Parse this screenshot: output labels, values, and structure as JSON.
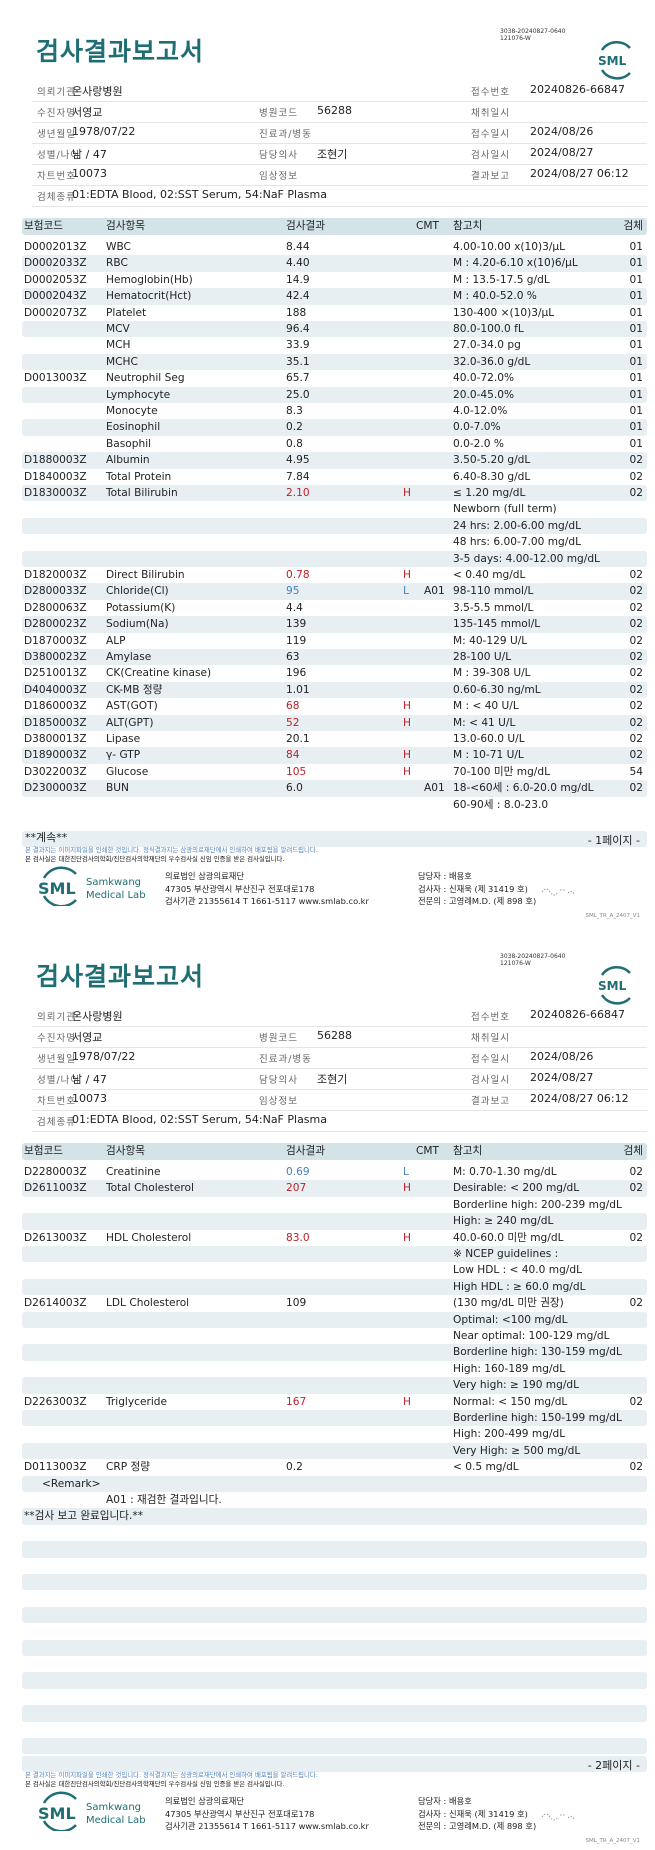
{
  "document": {
    "title": "검사결과보고서",
    "doc_id_line1": "3038-20240827-0640",
    "doc_id_line2": "121076-W",
    "brand_color": "#1e6e74",
    "high_color": "#c0202a",
    "low_color": "#4a7fc0"
  },
  "header": {
    "institution_label": "의뢰기관",
    "institution": "온사랑병원",
    "receipt_no_label": "접수번호",
    "receipt_no": "20240826-66847",
    "patient_label": "수진자명",
    "patient": "서영교",
    "hospital_code_label": "병원코드",
    "hospital_code": "56288",
    "collected_label": "채취일시",
    "collected": "",
    "dob_label": "생년월일",
    "dob": "1978/07/22",
    "dept_label": "진료과/병동",
    "dept": "",
    "received_label": "접수일시",
    "received": "2024/08/26",
    "sex_age_label": "성별/나이",
    "sex_age": "남 / 47",
    "doctor_label": "담당의사",
    "doctor": "조현기",
    "tested_label": "검사일시",
    "tested": "2024/08/27",
    "chart_label": "차트번호",
    "chart": "10073",
    "clinical_label": "임상정보",
    "clinical": "",
    "reported_label": "결과보고",
    "reported": "2024/08/27 06:12",
    "specimen_label": "검체종류",
    "specimen": "01:EDTA Blood, 02:SST Serum, 54:NaF Plasma"
  },
  "table_header": {
    "code": "보험코드",
    "item": "검사항목",
    "result": "검사결과",
    "cmt": "CMT",
    "ref": "참고치",
    "spec": "검체"
  },
  "pages": [
    {
      "rows": [
        {
          "code": "D0002013Z",
          "item": "WBC",
          "result": "8.44",
          "flag": "",
          "cmt": "",
          "ref": "4.00-10.00 x(10)3/μL",
          "spec": "01"
        },
        {
          "code": "D0002033Z",
          "item": "RBC",
          "result": "4.40",
          "flag": "",
          "cmt": "",
          "ref": "M : 4.20-6.10 x(10)6/μL",
          "spec": "01"
        },
        {
          "code": "D0002053Z",
          "item": "Hemoglobin(Hb)",
          "result": "14.9",
          "flag": "",
          "cmt": "",
          "ref": "M : 13.5-17.5 g/dL",
          "spec": "01"
        },
        {
          "code": "D0002043Z",
          "item": "Hematocrit(Hct)",
          "result": "42.4",
          "flag": "",
          "cmt": "",
          "ref": "M : 40.0-52.0 %",
          "spec": "01"
        },
        {
          "code": "D0002073Z",
          "item": "Platelet",
          "result": "188",
          "flag": "",
          "cmt": "",
          "ref": "130-400 ×(10)3/μL",
          "spec": "01"
        },
        {
          "code": "",
          "item": "MCV",
          "result": "96.4",
          "flag": "",
          "cmt": "",
          "ref": "80.0-100.0 fL",
          "spec": "01"
        },
        {
          "code": "",
          "item": "MCH",
          "result": "33.9",
          "flag": "",
          "cmt": "",
          "ref": "27.0-34.0 pg",
          "spec": "01"
        },
        {
          "code": "",
          "item": "MCHC",
          "result": "35.1",
          "flag": "",
          "cmt": "",
          "ref": "32.0-36.0 g/dL",
          "spec": "01"
        },
        {
          "code": "D0013003Z",
          "item": "Neutrophil Seg",
          "result": "65.7",
          "flag": "",
          "cmt": "",
          "ref": "40.0-72.0%",
          "spec": "01"
        },
        {
          "code": "",
          "item": "Lymphocyte",
          "result": "25.0",
          "flag": "",
          "cmt": "",
          "ref": "20.0-45.0%",
          "spec": "01"
        },
        {
          "code": "",
          "item": "Monocyte",
          "result": "8.3",
          "flag": "",
          "cmt": "",
          "ref": "4.0-12.0%",
          "spec": "01"
        },
        {
          "code": "",
          "item": "Eosinophil",
          "result": "0.2",
          "flag": "",
          "cmt": "",
          "ref": "0.0-7.0%",
          "spec": "01"
        },
        {
          "code": "",
          "item": "Basophil",
          "result": "0.8",
          "flag": "",
          "cmt": "",
          "ref": "0.0-2.0 %",
          "spec": "01"
        },
        {
          "code": "D1880003Z",
          "item": "Albumin",
          "result": "4.95",
          "flag": "",
          "cmt": "",
          "ref": "3.50-5.20 g/dL",
          "spec": "02"
        },
        {
          "code": "D1840003Z",
          "item": "Total Protein",
          "result": "7.84",
          "flag": "",
          "cmt": "",
          "ref": "6.40-8.30 g/dL",
          "spec": "02"
        },
        {
          "code": "D1830003Z",
          "item": "Total Bilirubin",
          "result": "2.10",
          "flag": "H",
          "cmt": "",
          "ref": "≤ 1.20 mg/dL",
          "spec": "02"
        },
        {
          "code": "",
          "item": "",
          "result": "",
          "flag": "",
          "cmt": "",
          "ref": "Newborn (full term)",
          "spec": ""
        },
        {
          "code": "",
          "item": "",
          "result": "",
          "flag": "",
          "cmt": "",
          "ref": "24 hrs: 2.00-6.00 mg/dL",
          "spec": ""
        },
        {
          "code": "",
          "item": "",
          "result": "",
          "flag": "",
          "cmt": "",
          "ref": "48 hrs: 6.00-7.00 mg/dL",
          "spec": ""
        },
        {
          "code": "",
          "item": "",
          "result": "",
          "flag": "",
          "cmt": "",
          "ref": "3-5 days: 4.00-12.00 mg/dL",
          "spec": ""
        },
        {
          "code": "D1820003Z",
          "item": "Direct Bilirubin",
          "result": "0.78",
          "flag": "H",
          "cmt": "",
          "ref": "< 0.40 mg/dL",
          "spec": "02"
        },
        {
          "code": "D2800033Z",
          "item": "Chloride(Cl)",
          "result": "95",
          "flag": "L",
          "cmt": "A01",
          "ref": "98-110 mmol/L",
          "spec": "02"
        },
        {
          "code": "D2800063Z",
          "item": "Potassium(K)",
          "result": "4.4",
          "flag": "",
          "cmt": "",
          "ref": "3.5-5.5 mmol/L",
          "spec": "02"
        },
        {
          "code": "D2800023Z",
          "item": "Sodium(Na)",
          "result": "139",
          "flag": "",
          "cmt": "",
          "ref": "135-145 mmol/L",
          "spec": "02"
        },
        {
          "code": "D1870003Z",
          "item": "ALP",
          "result": "119",
          "flag": "",
          "cmt": "",
          "ref": "M: 40-129 U/L",
          "spec": "02"
        },
        {
          "code": "D3800023Z",
          "item": "Amylase",
          "result": "63",
          "flag": "",
          "cmt": "",
          "ref": "28-100 U/L",
          "spec": "02"
        },
        {
          "code": "D2510013Z",
          "item": "CK(Creatine kinase)",
          "result": "196",
          "flag": "",
          "cmt": "",
          "ref": "M : 39-308 U/L",
          "spec": "02"
        },
        {
          "code": "D4040003Z",
          "item": "CK-MB 정량",
          "result": "1.01",
          "flag": "",
          "cmt": "",
          "ref": "0.60-6.30 ng/mL",
          "spec": "02"
        },
        {
          "code": "D1860003Z",
          "item": "AST(GOT)",
          "result": "68",
          "flag": "H",
          "cmt": "",
          "ref": "M : < 40 U/L",
          "spec": "02"
        },
        {
          "code": "D1850003Z",
          "item": "ALT(GPT)",
          "result": "52",
          "flag": "H",
          "cmt": "",
          "ref": "M: < 41 U/L",
          "spec": "02"
        },
        {
          "code": "D3800013Z",
          "item": "Lipase",
          "result": "20.1",
          "flag": "",
          "cmt": "",
          "ref": "13.0-60.0 U/L",
          "spec": "02"
        },
        {
          "code": "D1890003Z",
          "item": "γ- GTP",
          "result": "84",
          "flag": "H",
          "cmt": "",
          "ref": "M : 10-71 U/L",
          "spec": "02"
        },
        {
          "code": "D3022003Z",
          "item": "Glucose",
          "result": "105",
          "flag": "H",
          "cmt": "",
          "ref": "70-100 미만 mg/dL",
          "spec": "54"
        },
        {
          "code": "D2300003Z",
          "item": "BUN",
          "result": "6.0",
          "flag": "",
          "cmt": "A01",
          "ref": "18-<60세 : 6.0-20.0 mg/dL",
          "spec": "02"
        },
        {
          "code": "",
          "item": "",
          "result": "",
          "flag": "",
          "cmt": "",
          "ref": "60-90세 : 8.0-23.0",
          "spec": ""
        }
      ],
      "continued": "**계속**",
      "page_label": "- 1페이지 -"
    },
    {
      "rows": [
        {
          "code": "D2280003Z",
          "item": "Creatinine",
          "result": "0.69",
          "flag": "L",
          "cmt": "",
          "ref": "M: 0.70-1.30 mg/dL",
          "spec": "02"
        },
        {
          "code": "D2611003Z",
          "item": "Total Cholesterol",
          "result": "207",
          "flag": "H",
          "cmt": "",
          "ref": "Desirable: < 200 mg/dL",
          "spec": "02"
        },
        {
          "code": "",
          "item": "",
          "result": "",
          "flag": "",
          "cmt": "",
          "ref": "Borderline high: 200-239 mg/dL",
          "spec": ""
        },
        {
          "code": "",
          "item": "",
          "result": "",
          "flag": "",
          "cmt": "",
          "ref": "High: ≥ 240 mg/dL",
          "spec": ""
        },
        {
          "code": "D2613003Z",
          "item": "HDL Cholesterol",
          "result": "83.0",
          "flag": "H",
          "cmt": "",
          "ref": "40.0-60.0 미만 mg/dL",
          "spec": "02"
        },
        {
          "code": "",
          "item": "",
          "result": "",
          "flag": "",
          "cmt": "",
          "ref": "※ NCEP guidelines :",
          "spec": ""
        },
        {
          "code": "",
          "item": "",
          "result": "",
          "flag": "",
          "cmt": "",
          "ref": "Low HDL : < 40.0 mg/dL",
          "spec": ""
        },
        {
          "code": "",
          "item": "",
          "result": "",
          "flag": "",
          "cmt": "",
          "ref": "High HDL : ≥ 60.0 mg/dL",
          "spec": ""
        },
        {
          "code": "D2614003Z",
          "item": "LDL Cholesterol",
          "result": "109",
          "flag": "",
          "cmt": "",
          "ref": "(130 mg/dL 미만 권장)",
          "spec": "02"
        },
        {
          "code": "",
          "item": "",
          "result": "",
          "flag": "",
          "cmt": "",
          "ref": "Optimal: <100 mg/dL",
          "spec": ""
        },
        {
          "code": "",
          "item": "",
          "result": "",
          "flag": "",
          "cmt": "",
          "ref": "Near optimal: 100-129 mg/dL",
          "spec": ""
        },
        {
          "code": "",
          "item": "",
          "result": "",
          "flag": "",
          "cmt": "",
          "ref": "Borderline high: 130-159 mg/dL",
          "spec": ""
        },
        {
          "code": "",
          "item": "",
          "result": "",
          "flag": "",
          "cmt": "",
          "ref": "High: 160-189 mg/dL",
          "spec": ""
        },
        {
          "code": "",
          "item": "",
          "result": "",
          "flag": "",
          "cmt": "",
          "ref": "Very high: ≥ 190 mg/dL",
          "spec": ""
        },
        {
          "code": "D2263003Z",
          "item": "Triglyceride",
          "result": "167",
          "flag": "H",
          "cmt": "",
          "ref": "Normal: < 150 mg/dL",
          "spec": "02"
        },
        {
          "code": "",
          "item": "",
          "result": "",
          "flag": "",
          "cmt": "",
          "ref": "Borderline high: 150-199 mg/dL",
          "spec": ""
        },
        {
          "code": "",
          "item": "",
          "result": "",
          "flag": "",
          "cmt": "",
          "ref": "High: 200-499 mg/dL",
          "spec": ""
        },
        {
          "code": "",
          "item": "",
          "result": "",
          "flag": "",
          "cmt": "",
          "ref": "Very High: ≥ 500 mg/dL",
          "spec": ""
        },
        {
          "code": "D0113003Z",
          "item": "CRP 정량",
          "result": "0.2",
          "flag": "",
          "cmt": "",
          "ref": "< 0.5 mg/dL",
          "spec": "02"
        }
      ],
      "remark_label": "<Remark>",
      "remark_text": "A01 : 재검한 결과입니다.",
      "completion": "**검사 보고 완료입니다.**",
      "page_label": "- 2페이지 -"
    }
  ],
  "footer": {
    "notice_image": "본 결과지는 이미지파일을 인쇄한 것입니다. 정식결과지는 삼광의료재단에서 인쇄하여 배포됨을 알려드립니다.",
    "notice_accredit": "본 검사실은 대한진단검사의학회/진단검사의학재단의 우수검사실 신임 인증을 받은 검사실입니다.",
    "logo_text": "SML",
    "logo_name_1": "Samkwang",
    "logo_name_2": "Medical Lab",
    "org_name": "의료법인 삼광의료재단",
    "org_address": "47305 부산광역시 부산진구 전포대로178",
    "org_contact": "검사기관 21355614 T 1661-5117 www.smlab.co.kr",
    "staff_manager": "담당자 : 배용호",
    "staff_tester": "검사자 : 신재욱 (제 31419 호)",
    "staff_specialist": "전문의 : 고영례M.D. (제 898 호)",
    "version": "SML_TR_A_2407_V1"
  }
}
